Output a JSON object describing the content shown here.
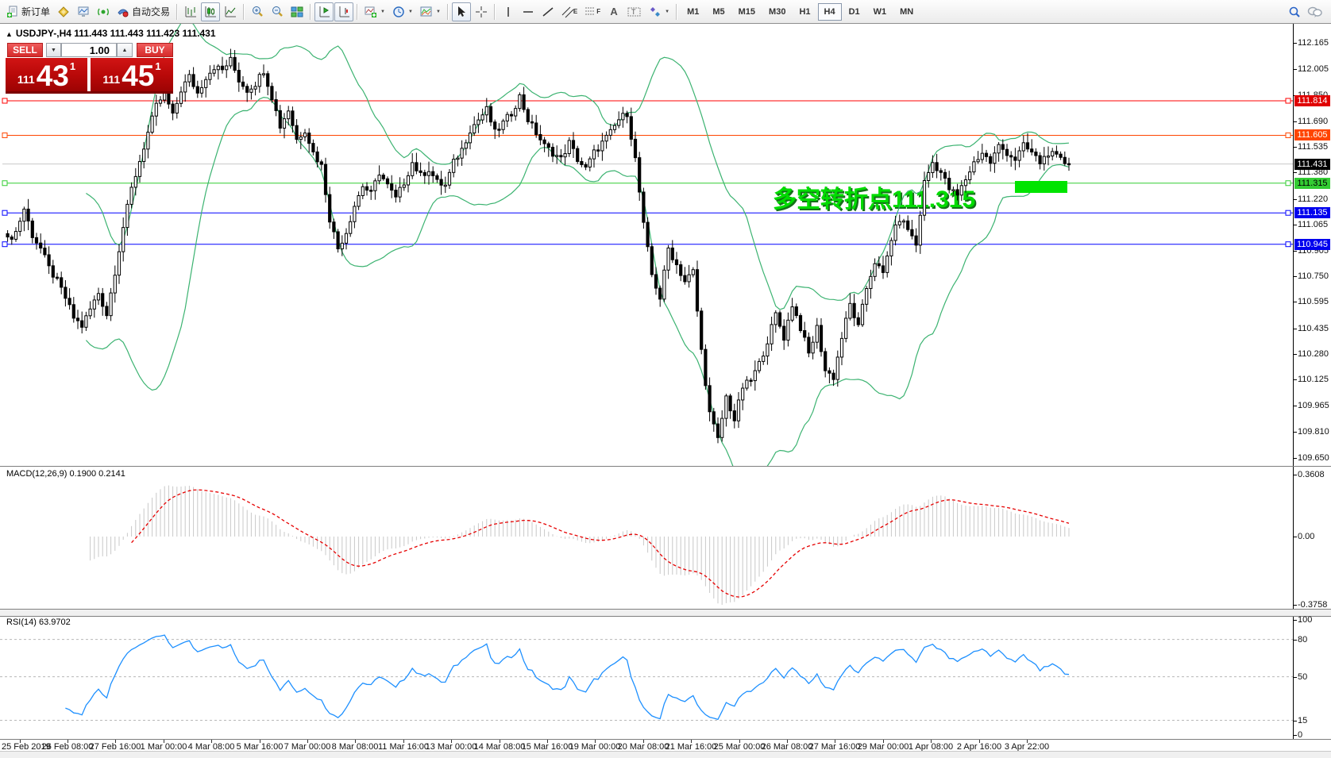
{
  "toolbar": {
    "new_order_label": "新订单",
    "autotrade_label": "自动交易",
    "glyphs": {
      "channel": "E",
      "fibo": "F",
      "text": "A",
      "label": "T"
    },
    "timeframes": [
      "M1",
      "M5",
      "M15",
      "M30",
      "H1",
      "H4",
      "D1",
      "W1",
      "MN"
    ],
    "active_timeframe": "H4",
    "icons": [
      "new-order-icon",
      "market-watch-icon",
      "data-window-icon",
      "navigator-icon",
      "autotrade-icon",
      "bar-chart-icon",
      "candlestick-chart-icon",
      "line-chart-icon",
      "zoom-in-icon",
      "zoom-out-icon",
      "tile-windows-icon",
      "chart-shift-icon",
      "auto-scroll-icon",
      "indicators-icon",
      "periods-icon",
      "templates-icon",
      "cursor-icon",
      "crosshair-icon",
      "vertical-line-icon",
      "horizontal-line-icon",
      "trendline-icon",
      "equidistant-channel-icon",
      "fibonacci-icon",
      "text-icon",
      "text-label-icon",
      "arrows-icon",
      "search-icon",
      "chat-icon"
    ]
  },
  "trade_panel": {
    "collapse_icon": "▲",
    "title_symbol": "USDJPY-,H4",
    "title_quotes": "111.443 111.443 111.423 111.431",
    "sell_label": "SELL",
    "buy_label": "BUY",
    "volume": "1.00",
    "spin_down": "▼",
    "spin_up": "▲",
    "bid": {
      "prefix": "111",
      "big": "43",
      "sup": "1"
    },
    "ask": {
      "prefix": "111",
      "big": "45",
      "sup": "1"
    }
  },
  "chart_data": {
    "type": "candlestick",
    "symbol": "USDJPY-",
    "timeframe": "H4",
    "price_ticks": [
      "112.165",
      "112.005",
      "111.850",
      "111.690",
      "111.535",
      "111.380",
      "111.220",
      "111.065",
      "110.905",
      "110.750",
      "110.595",
      "110.435",
      "110.280",
      "110.125",
      "109.965",
      "109.810",
      "109.650"
    ],
    "hlines": [
      {
        "price": 111.814,
        "label": "111.814",
        "line_color": "#ff0000",
        "badge_bg": "#e00000",
        "badge_fg": "#ffffff"
      },
      {
        "price": 111.605,
        "label": "111.605",
        "line_color": "#ff4500",
        "badge_bg": "#ff4500",
        "badge_fg": "#ffffff"
      },
      {
        "price": 111.315,
        "label": "111.315",
        "line_color": "#32cd32",
        "badge_bg": "#33cc33",
        "badge_fg": "#000000"
      },
      {
        "price": 111.135,
        "label": "111.135",
        "line_color": "#0000ff",
        "badge_bg": "#0000ee",
        "badge_fg": "#ffffff"
      },
      {
        "price": 110.945,
        "label": "110.945",
        "line_color": "#0000ff",
        "badge_bg": "#0000ee",
        "badge_fg": "#ffffff"
      }
    ],
    "bid_line": {
      "price": 111.431,
      "label": "111.431",
      "line_color": "#c8c8c8",
      "badge_bg": "#000000",
      "badge_fg": "#ffffff"
    },
    "candles": {
      "count": 258,
      "up_fill": "#ffffff",
      "down_fill": "#000000",
      "stroke": "#000000",
      "price_anchors": [
        [
          0,
          110.97
        ],
        [
          2,
          111.02
        ],
        [
          4,
          111.16
        ],
        [
          6,
          111.0
        ],
        [
          8,
          110.92
        ],
        [
          10,
          110.8
        ],
        [
          12,
          110.72
        ],
        [
          14,
          110.62
        ],
        [
          16,
          110.5
        ],
        [
          18,
          110.45
        ],
        [
          20,
          110.55
        ],
        [
          22,
          110.65
        ],
        [
          24,
          110.52
        ],
        [
          26,
          110.78
        ],
        [
          28,
          111.05
        ],
        [
          30,
          111.28
        ],
        [
          32,
          111.45
        ],
        [
          34,
          111.62
        ],
        [
          36,
          111.78
        ],
        [
          38,
          111.86
        ],
        [
          40,
          111.72
        ],
        [
          42,
          111.88
        ],
        [
          44,
          111.96
        ],
        [
          46,
          111.86
        ],
        [
          48,
          111.96
        ],
        [
          50,
          112.02
        ],
        [
          52,
          112.0
        ],
        [
          54,
          112.06
        ],
        [
          56,
          111.94
        ],
        [
          58,
          111.88
        ],
        [
          60,
          111.92
        ],
        [
          62,
          112.0
        ],
        [
          64,
          111.84
        ],
        [
          66,
          111.66
        ],
        [
          68,
          111.76
        ],
        [
          70,
          111.58
        ],
        [
          72,
          111.64
        ],
        [
          74,
          111.5
        ],
        [
          76,
          111.42
        ],
        [
          78,
          111.1
        ],
        [
          80,
          110.92
        ],
        [
          82,
          111.02
        ],
        [
          84,
          111.18
        ],
        [
          86,
          111.3
        ],
        [
          88,
          111.25
        ],
        [
          90,
          111.38
        ],
        [
          92,
          111.3
        ],
        [
          94,
          111.22
        ],
        [
          96,
          111.32
        ],
        [
          98,
          111.44
        ],
        [
          100,
          111.36
        ],
        [
          102,
          111.4
        ],
        [
          104,
          111.32
        ],
        [
          106,
          111.3
        ],
        [
          108,
          111.44
        ],
        [
          110,
          111.52
        ],
        [
          112,
          111.64
        ],
        [
          114,
          111.7
        ],
        [
          116,
          111.76
        ],
        [
          118,
          111.62
        ],
        [
          120,
          111.68
        ],
        [
          122,
          111.74
        ],
        [
          124,
          111.84
        ],
        [
          126,
          111.7
        ],
        [
          128,
          111.62
        ],
        [
          130,
          111.54
        ],
        [
          132,
          111.5
        ],
        [
          134,
          111.46
        ],
        [
          136,
          111.56
        ],
        [
          138,
          111.46
        ],
        [
          140,
          111.4
        ],
        [
          142,
          111.5
        ],
        [
          144,
          111.56
        ],
        [
          146,
          111.62
        ],
        [
          148,
          111.7
        ],
        [
          150,
          111.74
        ],
        [
          152,
          111.46
        ],
        [
          154,
          111.06
        ],
        [
          156,
          110.76
        ],
        [
          158,
          110.62
        ],
        [
          160,
          110.92
        ],
        [
          162,
          110.82
        ],
        [
          164,
          110.72
        ],
        [
          166,
          110.78
        ],
        [
          168,
          110.3
        ],
        [
          170,
          109.92
        ],
        [
          172,
          109.76
        ],
        [
          174,
          110.02
        ],
        [
          176,
          109.88
        ],
        [
          178,
          110.08
        ],
        [
          180,
          110.12
        ],
        [
          182,
          110.22
        ],
        [
          184,
          110.36
        ],
        [
          186,
          110.52
        ],
        [
          188,
          110.38
        ],
        [
          190,
          110.58
        ],
        [
          192,
          110.44
        ],
        [
          194,
          110.28
        ],
        [
          196,
          110.44
        ],
        [
          198,
          110.18
        ],
        [
          200,
          110.14
        ],
        [
          202,
          110.38
        ],
        [
          204,
          110.58
        ],
        [
          206,
          110.44
        ],
        [
          208,
          110.68
        ],
        [
          210,
          110.84
        ],
        [
          212,
          110.76
        ],
        [
          214,
          110.98
        ],
        [
          216,
          111.1
        ],
        [
          218,
          111.04
        ],
        [
          220,
          110.94
        ],
        [
          222,
          111.32
        ],
        [
          224,
          111.44
        ],
        [
          226,
          111.38
        ],
        [
          228,
          111.28
        ],
        [
          230,
          111.24
        ],
        [
          232,
          111.34
        ],
        [
          234,
          111.44
        ],
        [
          236,
          111.5
        ],
        [
          238,
          111.44
        ],
        [
          240,
          111.54
        ],
        [
          242,
          111.5
        ],
        [
          244,
          111.46
        ],
        [
          246,
          111.54
        ],
        [
          248,
          111.5
        ],
        [
          250,
          111.44
        ],
        [
          252,
          111.5
        ],
        [
          254,
          111.47
        ],
        [
          256,
          111.44
        ],
        [
          257,
          111.431
        ]
      ]
    },
    "bollinger": {
      "period": 20,
      "deviation": 2,
      "color": "#3cb371"
    },
    "macd": {
      "label": "MACD(12,26,9) 0.1900 0.2141",
      "params": [
        12,
        26,
        9
      ],
      "value": "0.1900",
      "signal_value": "0.2141",
      "axis": [
        "0.3608",
        "0.00",
        "-0.3758"
      ],
      "hist_color": "#c8c8c8",
      "signal_color": "#e60000"
    },
    "rsi": {
      "label": "RSI(14) 63.9702",
      "period": 14,
      "value": "63.9702",
      "color": "#1e90ff",
      "axis_labels": [
        "100",
        "80",
        "50",
        "15",
        "0"
      ],
      "levels": [
        80,
        50,
        15
      ],
      "level_color": "#b8b8b8"
    },
    "time_labels": [
      "25 Feb 2019",
      "26 Feb 08:00",
      "27 Feb 16:00",
      "1 Mar 00:00",
      "4 Mar 08:00",
      "5 Mar 16:00",
      "7 Mar 00:00",
      "8 Mar 08:00",
      "11 Mar 16:00",
      "13 Mar 00:00",
      "14 Mar 08:00",
      "15 Mar 16:00",
      "19 Mar 00:00",
      "20 Mar 08:00",
      "21 Mar 16:00",
      "25 Mar 00:00",
      "26 Mar 08:00",
      "27 Mar 16:00",
      "29 Mar 00:00",
      "1 Apr 08:00",
      "2 Apr 16:00",
      "3 Apr 22:00"
    ],
    "annotation": {
      "text": "多空转折点111.315",
      "color": "#00dc00",
      "shadow": "#15701a"
    },
    "highlight_box_color": "#00e400"
  }
}
